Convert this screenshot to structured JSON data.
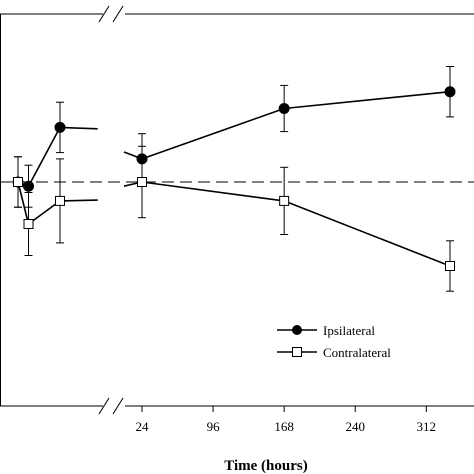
{
  "chart_data": {
    "type": "line",
    "title": "",
    "xlabel": "Time (hours)",
    "ylabel": "",
    "x_ticks": [
      24,
      96,
      168,
      240,
      312
    ],
    "x_break_between": [
      4,
      8
    ],
    "reference_line": "dashed horizontal at baseline (y = 0)",
    "ylim": [
      -1.0,
      1.0
    ],
    "grid": false,
    "legend_position": "bottom-right",
    "series": [
      {
        "name": "Ipsilateral",
        "marker": "filled-circle",
        "color": "#000000",
        "points": [
          {
            "x": 0,
            "y": 0.0,
            "err": 0.12
          },
          {
            "x": 1,
            "y": -0.02,
            "err": 0.1
          },
          {
            "x": 4,
            "y": 0.26,
            "err": 0.12
          },
          {
            "x": 24,
            "y": 0.11,
            "err": 0.12
          },
          {
            "x": 168,
            "y": 0.35,
            "err": 0.11
          },
          {
            "x": 336,
            "y": 0.43,
            "err": 0.12
          }
        ]
      },
      {
        "name": "Contralateral",
        "marker": "open-square",
        "color": "#000000",
        "points": [
          {
            "x": 0,
            "y": 0.0,
            "err": 0.12
          },
          {
            "x": 1,
            "y": -0.2,
            "err": 0.15
          },
          {
            "x": 4,
            "y": -0.09,
            "err": 0.2
          },
          {
            "x": 24,
            "y": 0.0,
            "err": 0.17
          },
          {
            "x": 168,
            "y": -0.09,
            "err": 0.16
          },
          {
            "x": 336,
            "y": -0.4,
            "err": 0.12
          }
        ]
      }
    ]
  }
}
